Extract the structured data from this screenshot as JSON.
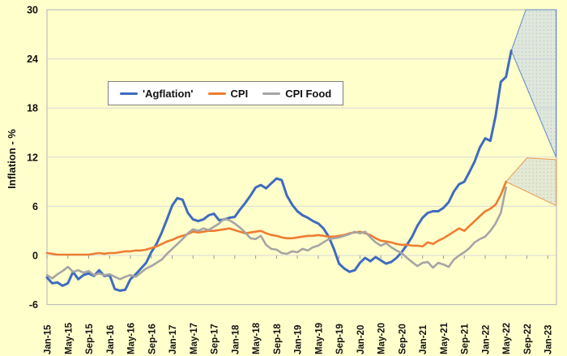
{
  "chart_data": {
    "type": "line",
    "title": "",
    "ylabel": "Inflation - %",
    "ylim": [
      -6,
      30
    ],
    "yticks": [
      30,
      24,
      18,
      12,
      6,
      0,
      -6
    ],
    "grid": "horizontal",
    "legend_position": "top-left-inside",
    "x_unit": "monthly data, index 0 = Jan-2015",
    "x_label_interval_months": 4,
    "x_tick_labels": [
      "Jan-15",
      "May-15",
      "Sep-15",
      "Jan-16",
      "May-16",
      "Sep-16",
      "Jan-17",
      "May-17",
      "Sep-17",
      "Jan-18",
      "May-18",
      "Sep-18",
      "Jan-19",
      "May-19",
      "Sep-19",
      "Jan-20",
      "May-20",
      "Sep-20",
      "Jan-21",
      "May-21",
      "Sep-21",
      "Jan-22",
      "May-22",
      "Sep-22",
      "Jan-23"
    ],
    "series": [
      {
        "name": "'Agflation'",
        "color": "#3F6BBE",
        "line_width": 3,
        "values": [
          -2.7,
          -3.4,
          -3.3,
          -3.7,
          -3.4,
          -2.0,
          -2.9,
          -2.4,
          -2.2,
          -2.5,
          -1.8,
          -2.5,
          -2.4,
          -4.1,
          -4.3,
          -4.2,
          -2.9,
          -2.3,
          -1.6,
          -0.9,
          0.4,
          1.4,
          2.8,
          4.4,
          6.1,
          7.0,
          6.8,
          5.2,
          4.4,
          4.2,
          4.4,
          4.9,
          5.1,
          4.3,
          4.4,
          4.6,
          4.7,
          5.6,
          6.4,
          7.3,
          8.3,
          8.6,
          8.2,
          8.8,
          9.4,
          9.2,
          7.3,
          6.2,
          5.4,
          4.9,
          4.6,
          4.2,
          3.9,
          3.3,
          2.3,
          0.8,
          -1.0,
          -1.6,
          -2.0,
          -1.8,
          -0.9,
          -0.3,
          -0.7,
          -0.2,
          -0.6,
          -1.0,
          -0.8,
          -0.3,
          0.4,
          1.3,
          2.3,
          3.6,
          4.6,
          5.2,
          5.4,
          5.4,
          5.8,
          6.5,
          7.8,
          8.7,
          9.0,
          10.2,
          11.5,
          13.2,
          14.3,
          14.0,
          17.0,
          21.2,
          21.8,
          25.0
        ]
      },
      {
        "name": "CPI",
        "color": "#ED7D31",
        "line_width": 2.6,
        "values": [
          0.3,
          0.2,
          0.1,
          0.1,
          0.1,
          0.1,
          0.1,
          0.1,
          0.1,
          0.2,
          0.3,
          0.2,
          0.3,
          0.3,
          0.4,
          0.5,
          0.5,
          0.6,
          0.6,
          0.7,
          0.9,
          1.1,
          1.4,
          1.7,
          1.9,
          2.2,
          2.4,
          2.6,
          2.9,
          2.8,
          2.9,
          3.0,
          3.0,
          3.1,
          3.2,
          3.3,
          3.1,
          2.9,
          2.7,
          2.8,
          2.9,
          3.0,
          2.7,
          2.5,
          2.4,
          2.2,
          2.1,
          2.1,
          2.2,
          2.3,
          2.4,
          2.4,
          2.5,
          2.4,
          2.3,
          2.3,
          2.4,
          2.5,
          2.7,
          2.8,
          2.9,
          2.7,
          2.5,
          2.1,
          1.8,
          1.7,
          1.6,
          1.4,
          1.3,
          1.3,
          1.2,
          1.2,
          1.1,
          1.6,
          1.4,
          1.8,
          2.1,
          2.5,
          2.9,
          3.3,
          3.0,
          3.6,
          4.2,
          4.8,
          5.4,
          5.7,
          6.2,
          7.4,
          9.0
        ]
      },
      {
        "name": "CPI Food",
        "color": "#A5A5A5",
        "line_width": 2.6,
        "values": [
          -2.4,
          -2.8,
          -2.3,
          -1.9,
          -1.4,
          -2.0,
          -1.8,
          -2.1,
          -1.9,
          -2.4,
          -2.2,
          -2.4,
          -2.3,
          -2.6,
          -2.9,
          -2.6,
          -2.4,
          -2.6,
          -2.1,
          -1.6,
          -1.3,
          -0.9,
          -0.5,
          0.2,
          0.8,
          1.4,
          2.0,
          2.7,
          3.2,
          3.0,
          3.3,
          3.1,
          3.5,
          3.9,
          4.5,
          4.3,
          3.9,
          3.4,
          2.8,
          2.1,
          2.0,
          2.4,
          1.3,
          0.8,
          0.7,
          0.3,
          0.2,
          0.5,
          0.4,
          0.8,
          0.6,
          1.0,
          1.2,
          1.6,
          2.0,
          2.1,
          2.2,
          2.4,
          2.6,
          2.9,
          2.7,
          2.9,
          2.2,
          1.6,
          1.2,
          1.5,
          1.0,
          0.6,
          0.3,
          -0.3,
          -0.8,
          -1.3,
          -0.9,
          -0.8,
          -1.5,
          -0.9,
          -1.1,
          -1.4,
          -0.5,
          0.0,
          0.4,
          0.9,
          1.6,
          2.0,
          2.3,
          3.0,
          3.9,
          5.2,
          8.3
        ]
      }
    ],
    "forecast_fans": [
      {
        "series": "'Agflation'",
        "apex": [
          89,
          25.0
        ],
        "upper": [
          [
            91.8,
            30
          ],
          [
            97.6,
            30
          ]
        ],
        "lower": [
          [
            97.6,
            12.0
          ]
        ],
        "stroke": "#6C8EC9",
        "fill": "rgba(191,207,238,0.5)"
      },
      {
        "series": "CPI",
        "apex": [
          88,
          9.0
        ],
        "upper": [
          [
            92,
            11.9
          ],
          [
            97.6,
            11.7
          ]
        ],
        "lower": [
          [
            97.6,
            6.1
          ]
        ],
        "stroke": "#E8A15E",
        "fill": "rgba(195,206,222,0.45)"
      }
    ],
    "colors": {
      "background": "#FFFFCC",
      "gridline": "#D9D9D9",
      "plot_border": "#BFBFBF",
      "axis_tick": "#999999",
      "label_text": "#111111"
    }
  },
  "legend": {
    "note": "labels mirror chart_data.series names"
  }
}
